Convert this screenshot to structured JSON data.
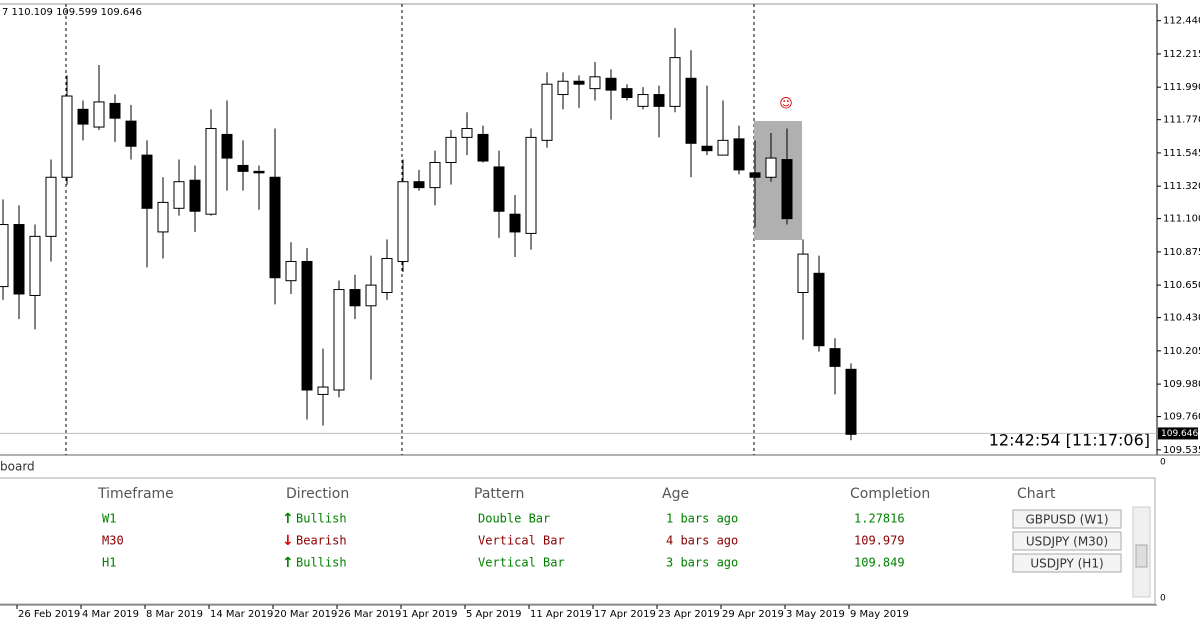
{
  "header_ohlc": "7 110.109 109.599 109.646",
  "chart_data": {
    "type": "candlestick",
    "categories": [
      null,
      "26 Feb 2019",
      null,
      null,
      null,
      "4 Mar 2019",
      null,
      null,
      null,
      "8 Mar 2019",
      null,
      null,
      null,
      "14 Mar 2019",
      null,
      null,
      null,
      "20 Mar 2019",
      null,
      null,
      null,
      "26 Mar 2019",
      null,
      null,
      null,
      "1 Apr 2019",
      null,
      null,
      null,
      "5 Apr 2019",
      null,
      null,
      null,
      "11 Apr 2019",
      null,
      null,
      null,
      "17 Apr 2019",
      null,
      null,
      null,
      "23 Apr 2019",
      null,
      null,
      null,
      "29 Apr 2019",
      null,
      null,
      null,
      "3 May 2019",
      null,
      null,
      null,
      "9 May 2019"
    ],
    "open": [
      110.64,
      111.06,
      110.58,
      110.98,
      111.38,
      111.84,
      111.72,
      111.88,
      111.76,
      111.53,
      111.01,
      111.17,
      111.36,
      111.13,
      111.67,
      111.46,
      111.42,
      111.38,
      110.68,
      110.81,
      109.91,
      109.94,
      110.62,
      110.51,
      110.6,
      110.81,
      111.35,
      111.31,
      111.48,
      111.65,
      111.67,
      111.45,
      111.13,
      111.0,
      111.63,
      111.94,
      112.03,
      111.98,
      112.05,
      111.98,
      111.86,
      111.94,
      111.86,
      112.05,
      111.59,
      111.53,
      111.64,
      111.41,
      111.38,
      111.5,
      110.6,
      110.73,
      110.22,
      110.08
    ],
    "high": [
      111.23,
      111.19,
      111.06,
      111.5,
      112.07,
      111.9,
      112.14,
      111.94,
      111.87,
      111.63,
      111.38,
      111.5,
      111.46,
      111.84,
      111.9,
      111.63,
      111.46,
      111.71,
      110.94,
      110.9,
      110.22,
      110.68,
      110.72,
      110.85,
      110.96,
      111.5,
      111.43,
      111.56,
      111.7,
      111.82,
      111.73,
      111.56,
      111.26,
      111.71,
      112.09,
      112.09,
      112.07,
      112.16,
      112.11,
      112.01,
      111.99,
      112.0,
      112.39,
      112.24,
      112.0,
      111.9,
      111.73,
      111.63,
      111.68,
      111.71,
      110.96,
      110.85,
      110.29,
      110.12
    ],
    "low": [
      110.55,
      110.42,
      110.35,
      110.81,
      111.33,
      111.63,
      111.7,
      111.62,
      111.5,
      110.77,
      110.83,
      111.12,
      111.01,
      111.12,
      111.29,
      111.29,
      111.16,
      110.52,
      110.59,
      109.74,
      109.7,
      109.89,
      110.42,
      110.01,
      110.55,
      110.74,
      111.29,
      111.19,
      111.33,
      111.53,
      111.48,
      110.97,
      110.84,
      110.89,
      111.58,
      111.84,
      111.85,
      111.9,
      111.77,
      111.9,
      111.84,
      111.65,
      111.82,
      111.38,
      111.53,
      111.53,
      111.4,
      111.04,
      111.35,
      111.06,
      110.28,
      110.2,
      109.91,
      109.6
    ],
    "close": [
      111.06,
      110.59,
      110.98,
      111.38,
      111.93,
      111.74,
      111.89,
      111.78,
      111.59,
      111.17,
      111.21,
      111.35,
      111.15,
      111.71,
      111.51,
      111.42,
      111.41,
      110.7,
      110.81,
      109.94,
      109.96,
      110.62,
      110.51,
      110.65,
      110.83,
      111.35,
      111.31,
      111.48,
      111.65,
      111.71,
      111.49,
      111.15,
      111.01,
      111.65,
      112.01,
      112.03,
      112.01,
      112.06,
      111.97,
      111.92,
      111.94,
      111.86,
      112.19,
      111.61,
      111.56,
      111.63,
      111.43,
      111.38,
      111.51,
      111.1,
      110.86,
      110.24,
      110.1,
      109.64
    ],
    "up_color": "#ffffff",
    "down_color": "#000000",
    "ylim": [
      109.5,
      112.58
    ],
    "yticks": [
      {
        "value": 112.44,
        "label": "112.440"
      },
      {
        "value": 112.215,
        "label": "112.215"
      },
      {
        "value": 111.99,
        "label": "111.990"
      },
      {
        "value": 111.77,
        "label": "111.770"
      },
      111.545,
      {
        "value": 111.32,
        "label": "111.320"
      },
      {
        "value": 111.1,
        "label": "111.100"
      },
      110.875,
      {
        "value": 110.65,
        "label": "110.650"
      },
      {
        "value": 110.43,
        "label": "110.430"
      },
      110.205,
      {
        "value": 109.98,
        "label": "109.980"
      },
      {
        "value": 109.76,
        "label": "109.760"
      },
      109.535
    ],
    "last_price": 109.646
  },
  "time_label": "12:42:54 [11:17:06]",
  "indicator_scale": [
    "0",
    "0"
  ],
  "dashboard": {
    "title": "board",
    "columns": [
      "Timeframe",
      "Direction",
      "Pattern",
      "Age",
      "Completion",
      "Chart"
    ],
    "rows": [
      {
        "cells": [
          "W1",
          "Bullish",
          "Double Bar",
          "1 bars ago",
          "1.27816",
          "GBPUSD (W1)"
        ],
        "color": "#008000",
        "arrow": "up"
      },
      {
        "cells": [
          "M30",
          "Bearish",
          "Vertical Bar",
          "4 bars ago",
          "109.979",
          "USDJPY (M30)"
        ],
        "color": "#8b0000",
        "arrow": "down"
      },
      {
        "cells": [
          "H1",
          "Bullish",
          "Vertical Bar",
          "3 bars ago",
          "109.849",
          "USDJPY (H1)"
        ],
        "color": "#008000",
        "arrow": "up"
      }
    ]
  }
}
